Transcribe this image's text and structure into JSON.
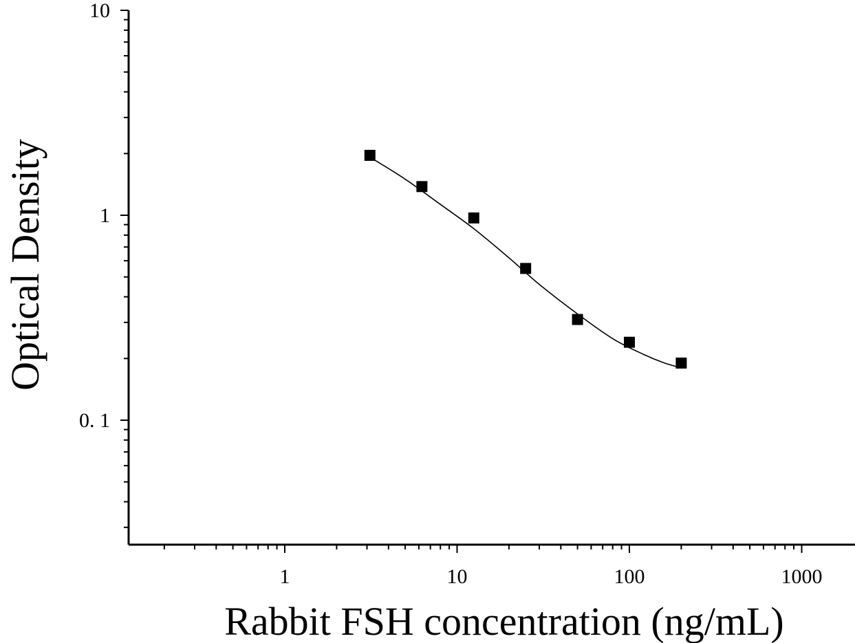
{
  "chart_data": {
    "type": "scatter",
    "title": "",
    "xlabel": "Rabbit FSH concentration (ng/mL)",
    "ylabel": "Optical Density",
    "x_scale": "log",
    "y_scale": "log",
    "xlim": [
      0.1,
      1500
    ],
    "ylim": [
      0.023,
      10
    ],
    "x_ticks": [
      1,
      10,
      100,
      1000
    ],
    "x_tick_labels": [
      "1",
      "10",
      "100",
      "1000"
    ],
    "y_ticks": [
      0.1,
      1,
      10
    ],
    "y_tick_labels": [
      "0. 1",
      "1",
      "10"
    ],
    "grid": false,
    "legend": "none",
    "series": [
      {
        "marker": "square",
        "color": "#000000",
        "x": [
          3.12,
          6.25,
          12.5,
          25,
          50,
          100,
          200
        ],
        "y": [
          1.96,
          1.38,
          0.97,
          0.55,
          0.31,
          0.24,
          0.19
        ]
      }
    ],
    "fit_curve": {
      "color": "#000000",
      "x": [
        3.12,
        5,
        8,
        12.5,
        20,
        30,
        50,
        80,
        120,
        160,
        200
      ],
      "y": [
        1.92,
        1.5,
        1.13,
        0.86,
        0.62,
        0.46,
        0.33,
        0.25,
        0.21,
        0.19,
        0.18
      ]
    }
  }
}
